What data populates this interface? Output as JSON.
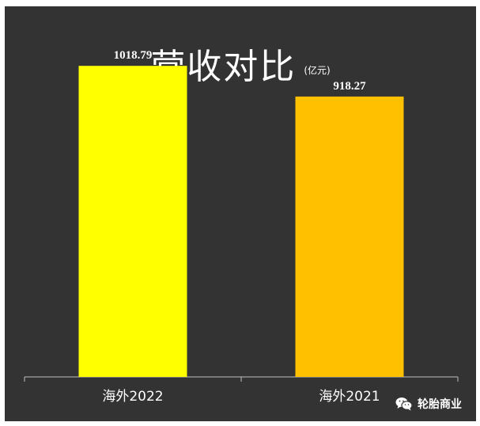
{
  "chart_data": {
    "type": "bar",
    "title": "营收对比",
    "unit": "(亿元)",
    "categories": [
      "海外2022",
      "海外2021"
    ],
    "values": [
      1018.79,
      918.27
    ],
    "value_labels": [
      "1018.79",
      "918.27"
    ],
    "colors": [
      "#FFFF00",
      "#FFC000"
    ],
    "ylim": [
      0,
      1110
    ],
    "grid": false,
    "legend": "none",
    "background": "#333333"
  },
  "watermark": {
    "text": "轮胎商业",
    "icon": "wechat-icon"
  }
}
